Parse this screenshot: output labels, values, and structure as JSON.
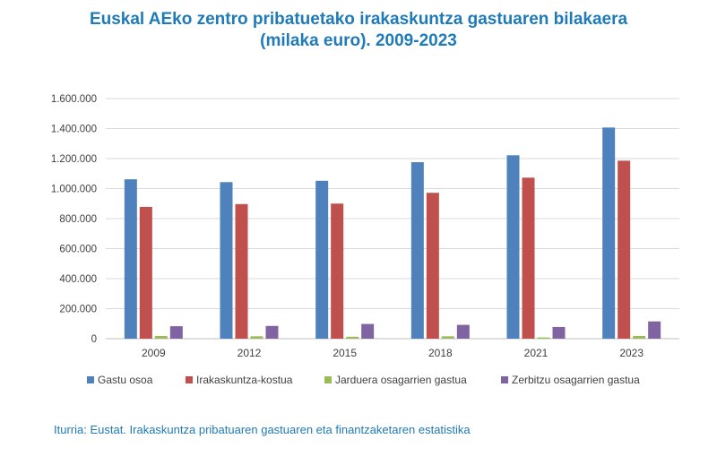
{
  "chart_data": {
    "type": "bar",
    "title_line1": "Euskal AEko zentro pribatuetako irakaskuntza gastuaren bilakaera",
    "title_line2": "(milaka euro). 2009-2023",
    "categories": [
      "2009",
      "2012",
      "2015",
      "2018",
      "2021",
      "2023"
    ],
    "series": [
      {
        "name": "Gastu osoa",
        "color": "#4f81bd",
        "values": [
          1062000,
          1043000,
          1052000,
          1176000,
          1222000,
          1407000
        ]
      },
      {
        "name": "Irakaskuntza-kostua",
        "color": "#c0504d",
        "values": [
          878000,
          897000,
          900000,
          972000,
          1073000,
          1186000
        ]
      },
      {
        "name": "Jarduera osagarrien gastua",
        "color": "#9bbb59",
        "values": [
          18000,
          16000,
          13000,
          16000,
          8000,
          18000
        ]
      },
      {
        "name": "Zerbitzu osagarrien gastua",
        "color": "#8064a2",
        "values": [
          83000,
          85000,
          98000,
          92000,
          78000,
          115000
        ]
      }
    ],
    "yticks": [
      "0",
      "200.000",
      "400.000",
      "600.000",
      "800.000",
      "1.000.000",
      "1.200.000",
      "1.400.000",
      "1.600.000"
    ],
    "ylim": [
      0,
      1600000
    ],
    "grid": true,
    "legend_position": "bottom"
  },
  "source": "Iturria: Eustat. Irakaskuntza pribatuaren gastuaren eta finantzaketaren estatistika"
}
